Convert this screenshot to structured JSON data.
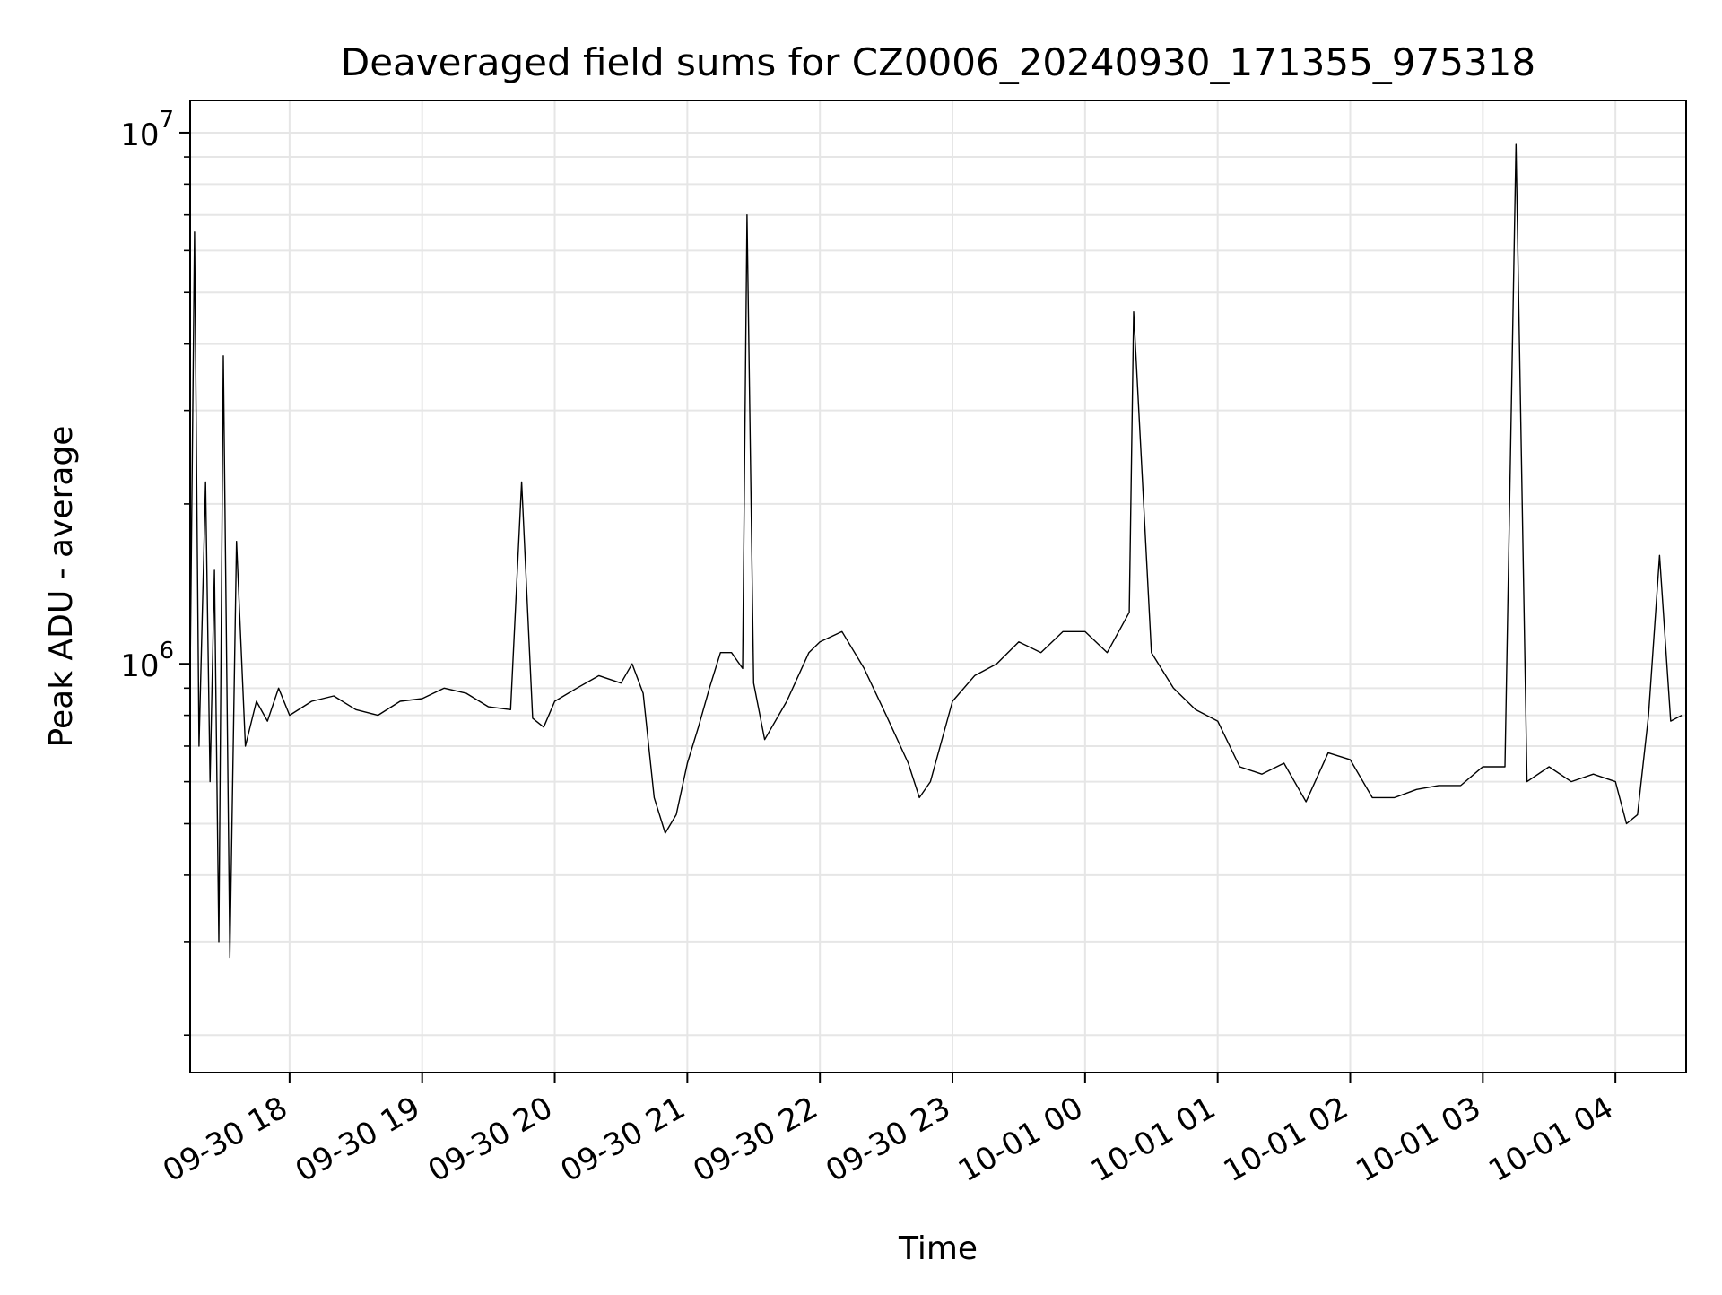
{
  "chart_data": {
    "type": "line",
    "title": "Deaveraged field sums for CZ0006_20240930_171355_975318",
    "xlabel": "Time",
    "ylabel": "Peak ADU - average",
    "yscale": "log",
    "ylim": [
      170000,
      11500000
    ],
    "xlim": [
      "2024-09-30 17:15",
      "2024-10-01 04:32"
    ],
    "grid": true,
    "line_color": "#000000",
    "grid_color": "#e6e6e6",
    "x_ticks": [
      {
        "value": "2024-09-30 18:00",
        "label": "09-30 18"
      },
      {
        "value": "2024-09-30 19:00",
        "label": "09-30 19"
      },
      {
        "value": "2024-09-30 20:00",
        "label": "09-30 20"
      },
      {
        "value": "2024-09-30 21:00",
        "label": "09-30 21"
      },
      {
        "value": "2024-09-30 22:00",
        "label": "09-30 22"
      },
      {
        "value": "2024-09-30 23:00",
        "label": "09-30 23"
      },
      {
        "value": "2024-10-01 00:00",
        "label": "10-01 00"
      },
      {
        "value": "2024-10-01 01:00",
        "label": "10-01 01"
      },
      {
        "value": "2024-10-01 02:00",
        "label": "10-01 02"
      },
      {
        "value": "2024-10-01 03:00",
        "label": "10-01 03"
      },
      {
        "value": "2024-10-01 04:00",
        "label": "10-01 04"
      }
    ],
    "y_ticks": [
      {
        "value": 1000000,
        "base": "10",
        "exp": "6"
      },
      {
        "value": 10000000,
        "base": "10",
        "exp": "7"
      }
    ],
    "series": [
      {
        "x": [
          "2024-09-30 17:15",
          "2024-09-30 17:17",
          "2024-09-30 17:19",
          "2024-09-30 17:22",
          "2024-09-30 17:24",
          "2024-09-30 17:26",
          "2024-09-30 17:28",
          "2024-09-30 17:30",
          "2024-09-30 17:33",
          "2024-09-30 17:36",
          "2024-09-30 17:40",
          "2024-09-30 17:45",
          "2024-09-30 17:50",
          "2024-09-30 17:55",
          "2024-09-30 18:00",
          "2024-09-30 18:10",
          "2024-09-30 18:20",
          "2024-09-30 18:30",
          "2024-09-30 18:40",
          "2024-09-30 18:50",
          "2024-09-30 19:00",
          "2024-09-30 19:10",
          "2024-09-30 19:20",
          "2024-09-30 19:30",
          "2024-09-30 19:40",
          "2024-09-30 19:45",
          "2024-09-30 19:50",
          "2024-09-30 19:55",
          "2024-09-30 20:00",
          "2024-09-30 20:10",
          "2024-09-30 20:20",
          "2024-09-30 20:30",
          "2024-09-30 20:35",
          "2024-09-30 20:40",
          "2024-09-30 20:45",
          "2024-09-30 20:50",
          "2024-09-30 20:55",
          "2024-09-30 21:00",
          "2024-09-30 21:05",
          "2024-09-30 21:10",
          "2024-09-30 21:15",
          "2024-09-30 21:20",
          "2024-09-30 21:25",
          "2024-09-30 21:27",
          "2024-09-30 21:30",
          "2024-09-30 21:35",
          "2024-09-30 21:45",
          "2024-09-30 21:55",
          "2024-09-30 22:00",
          "2024-09-30 22:10",
          "2024-09-30 22:20",
          "2024-09-30 22:30",
          "2024-09-30 22:40",
          "2024-09-30 22:45",
          "2024-09-30 22:50",
          "2024-09-30 23:00",
          "2024-09-30 23:10",
          "2024-09-30 23:20",
          "2024-09-30 23:30",
          "2024-09-30 23:40",
          "2024-09-30 23:50",
          "2024-10-01 00:00",
          "2024-10-01 00:10",
          "2024-10-01 00:20",
          "2024-10-01 00:22",
          "2024-10-01 00:30",
          "2024-10-01 00:40",
          "2024-10-01 00:50",
          "2024-10-01 01:00",
          "2024-10-01 01:10",
          "2024-10-01 01:20",
          "2024-10-01 01:30",
          "2024-10-01 01:40",
          "2024-10-01 01:50",
          "2024-10-01 02:00",
          "2024-10-01 02:10",
          "2024-10-01 02:20",
          "2024-10-01 02:30",
          "2024-10-01 02:40",
          "2024-10-01 02:50",
          "2024-10-01 03:00",
          "2024-10-01 03:10",
          "2024-10-01 03:15",
          "2024-10-01 03:20",
          "2024-10-01 03:30",
          "2024-10-01 03:40",
          "2024-10-01 03:50",
          "2024-10-01 04:00",
          "2024-10-01 04:05",
          "2024-10-01 04:10",
          "2024-10-01 04:15",
          "2024-10-01 04:20",
          "2024-10-01 04:25",
          "2024-10-01 04:30"
        ],
        "values": [
          950000,
          6500000,
          700000,
          2200000,
          600000,
          1500000,
          300000,
          3800000,
          280000,
          1700000,
          700000,
          850000,
          780000,
          900000,
          800000,
          850000,
          870000,
          820000,
          800000,
          850000,
          860000,
          900000,
          880000,
          830000,
          820000,
          2200000,
          790000,
          760000,
          850000,
          900000,
          950000,
          920000,
          1000000,
          880000,
          560000,
          480000,
          520000,
          650000,
          760000,
          900000,
          1050000,
          1050000,
          980000,
          7000000,
          920000,
          720000,
          850000,
          1050000,
          1100000,
          1150000,
          980000,
          800000,
          650000,
          560000,
          600000,
          850000,
          950000,
          1000000,
          1100000,
          1050000,
          1150000,
          1150000,
          1050000,
          1250000,
          4600000,
          1050000,
          900000,
          820000,
          780000,
          640000,
          620000,
          650000,
          550000,
          680000,
          660000,
          560000,
          560000,
          580000,
          590000,
          590000,
          640000,
          640000,
          9500000,
          600000,
          640000,
          600000,
          620000,
          600000,
          500000,
          520000,
          800000,
          1600000,
          780000,
          800000
        ]
      }
    ]
  }
}
